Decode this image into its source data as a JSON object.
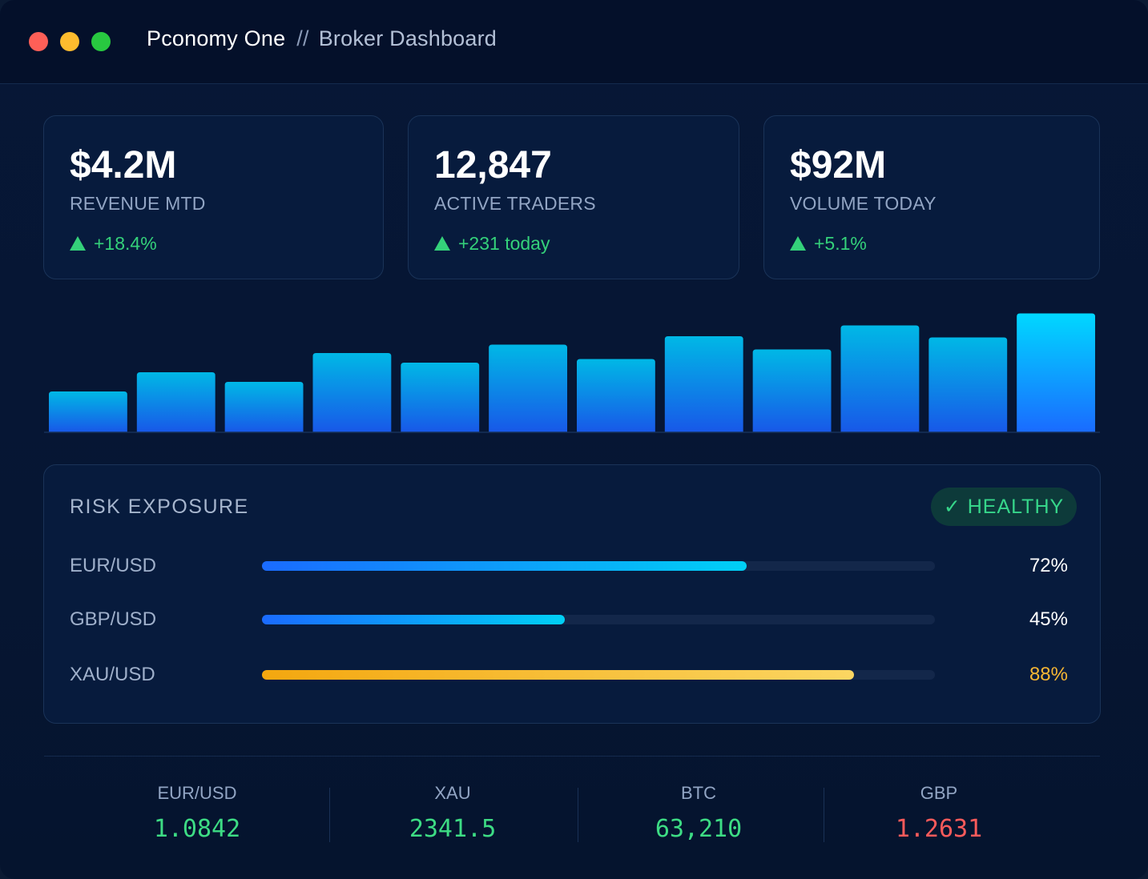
{
  "window": {
    "app_name": "Pconomy One",
    "separator": "//",
    "page_title": "Broker Dashboard"
  },
  "kpis": [
    {
      "value": "$4.2M",
      "label": "REVENUE MTD",
      "delta": "+18.4%"
    },
    {
      "value": "12,847",
      "label": "ACTIVE TRADERS",
      "delta": "+231 today"
    },
    {
      "value": "$92M",
      "label": "VOLUME TODAY",
      "delta": "+5.1%"
    }
  ],
  "chart_data": {
    "type": "bar",
    "values": [
      34,
      50,
      42,
      66,
      58,
      73,
      61,
      80,
      69,
      89,
      79,
      99
    ],
    "ylim": [
      0,
      100
    ],
    "grid": false,
    "colors": {
      "top": "#00b8e6",
      "bottom": "#1858e8",
      "highlight_top": "#00d8ff",
      "highlight_bottom": "#1a6bff"
    }
  },
  "risk": {
    "title": "RISK EXPOSURE",
    "status": "HEALTHY",
    "items": [
      {
        "pair": "EUR/USD",
        "level": 0.72,
        "pct": "72%",
        "color": "blue"
      },
      {
        "pair": "GBP/USD",
        "level": 0.45,
        "pct": "45%",
        "color": "blue"
      },
      {
        "pair": "XAU/USD",
        "level": 0.88,
        "pct": "88%",
        "color": "gold"
      }
    ]
  },
  "tickers": [
    {
      "symbol": "EUR/USD",
      "price": "1.0842",
      "direction": "up"
    },
    {
      "symbol": "XAU",
      "price": "2341.5",
      "direction": "up"
    },
    {
      "symbol": "BTC",
      "price": "63,210",
      "direction": "up"
    },
    {
      "symbol": "GBP",
      "price": "1.2631",
      "direction": "down"
    }
  ],
  "colors": {
    "positive": "#34d17a",
    "negative": "#ff5b5b",
    "warning": "#f7b733",
    "accent": "#00d0f5"
  }
}
